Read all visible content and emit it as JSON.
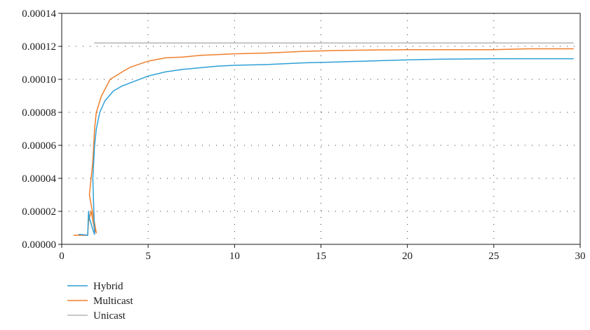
{
  "chart_data": {
    "type": "line",
    "title": "",
    "xlabel": "",
    "ylabel": "",
    "xlim": [
      0,
      30
    ],
    "ylim": [
      0,
      0.00014
    ],
    "x_ticks": [
      0,
      5,
      10,
      15,
      20,
      25,
      30
    ],
    "x_tick_labels": [
      "0",
      "5",
      "10",
      "15",
      "20",
      "25",
      "30"
    ],
    "y_ticks": [
      0,
      2e-05,
      4e-05,
      6e-05,
      8e-05,
      0.0001,
      0.00012,
      0.00014
    ],
    "y_tick_labels": [
      "0.00000",
      "0.00002",
      "0.00004",
      "0.00006",
      "0.00008",
      "0.00010",
      "0.00012",
      "0.00014"
    ],
    "grid": "dotted",
    "legend_position": "bottom-left",
    "series": [
      {
        "name": "Hybrid",
        "color": "#2e9fd6",
        "points": [
          [
            1.0,
            6e-06
          ],
          [
            1.3,
            5.8e-06
          ],
          [
            1.5,
            5.5e-06
          ],
          [
            1.55,
            2e-05
          ],
          [
            1.6,
            1.6e-05
          ],
          [
            1.8,
            9e-06
          ],
          [
            1.9,
            6e-06
          ],
          [
            1.8,
            4e-05
          ],
          [
            1.9,
            6e-05
          ],
          [
            2.0,
            7e-05
          ],
          [
            2.2,
            8e-05
          ],
          [
            2.5,
            8.7e-05
          ],
          [
            3.0,
            9.3e-05
          ],
          [
            3.5,
            9.6e-05
          ],
          [
            4.0,
            9.8e-05
          ],
          [
            5.0,
            0.000102
          ],
          [
            6.0,
            0.0001045
          ],
          [
            7.0,
            0.000106
          ],
          [
            8.0,
            0.000107
          ],
          [
            9.0,
            0.000108
          ],
          [
            10.0,
            0.0001085
          ],
          [
            12.0,
            0.000109
          ],
          [
            14.0,
            0.00011
          ],
          [
            16.0,
            0.0001105
          ],
          [
            18.0,
            0.0001112
          ],
          [
            20.0,
            0.0001118
          ],
          [
            22.0,
            0.0001122
          ],
          [
            25.0,
            0.0001125
          ],
          [
            28.0,
            0.0001125
          ],
          [
            29.6,
            0.0001125
          ]
        ]
      },
      {
        "name": "Multicast",
        "color": "#f07f2c",
        "points": [
          [
            0.7,
            5.5e-06
          ],
          [
            1.0,
            5.5e-06
          ],
          [
            1.3,
            5.5e-06
          ],
          [
            1.5,
            5.5e-06
          ],
          [
            1.55,
            1.4e-05
          ],
          [
            1.7,
            2e-05
          ],
          [
            1.9,
            9e-06
          ],
          [
            2.0,
            7e-06
          ],
          [
            1.6,
            3e-05
          ],
          [
            1.8,
            5e-05
          ],
          [
            1.9,
            7e-05
          ],
          [
            2.0,
            8e-05
          ],
          [
            2.3,
            9e-05
          ],
          [
            2.8,
            0.0001
          ],
          [
            3.5,
            0.0001045
          ],
          [
            4.0,
            0.0001075
          ],
          [
            5.0,
            0.000111
          ],
          [
            6.0,
            0.000113
          ],
          [
            7.0,
            0.0001135
          ],
          [
            8.0,
            0.0001145
          ],
          [
            10.0,
            0.0001155
          ],
          [
            12.0,
            0.000116
          ],
          [
            14.0,
            0.000117
          ],
          [
            16.0,
            0.0001175
          ],
          [
            18.0,
            0.0001178
          ],
          [
            20.0,
            0.000118
          ],
          [
            22.0,
            0.000118
          ],
          [
            25.0,
            0.000118
          ],
          [
            27.0,
            0.0001185
          ],
          [
            29.6,
            0.0001185
          ]
        ]
      },
      {
        "name": "Unicast",
        "color": "#b5b5b5",
        "points": [
          [
            1.9,
            0.000122
          ],
          [
            2.0,
            0.000122
          ],
          [
            5.0,
            0.000122
          ],
          [
            10.0,
            0.000122
          ],
          [
            15.0,
            0.000122
          ],
          [
            20.0,
            0.000122
          ],
          [
            25.0,
            0.000122
          ],
          [
            29.6,
            0.000122
          ]
        ]
      }
    ]
  }
}
